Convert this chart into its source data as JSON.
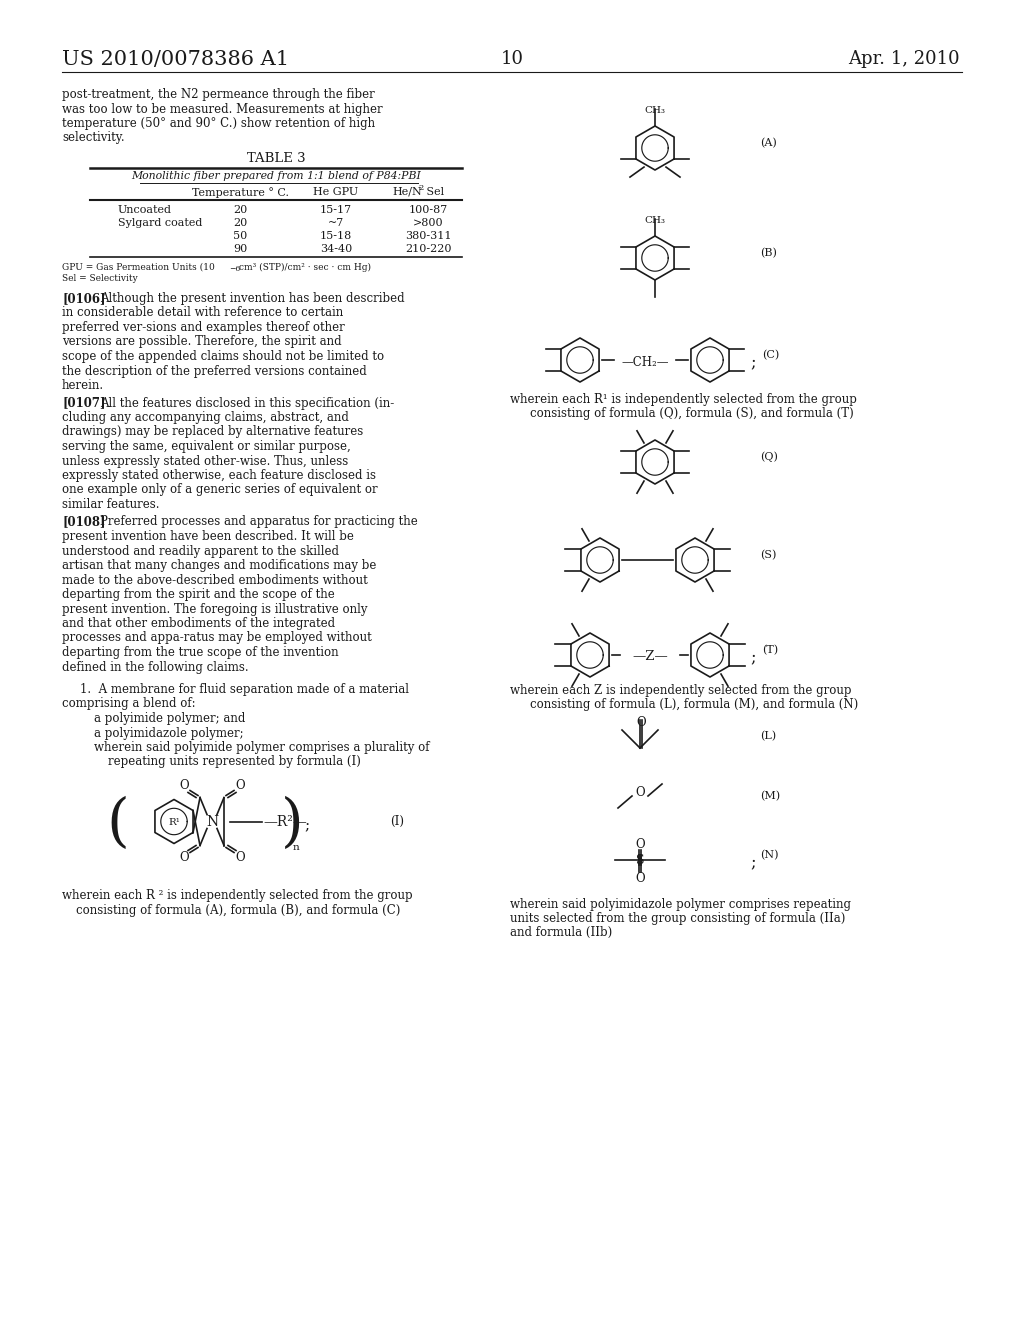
{
  "bg_color": "#ffffff",
  "text_color": "#1a1a1a",
  "header_left": "US 2010/0078386 A1",
  "header_right": "Apr. 1, 2010",
  "page_number": "10",
  "table_title": "TABLE 3",
  "table_subtitle": "Monolithic fiber prepared from 1:1 blend of P84:PBI",
  "table_rows": [
    [
      "Uncoated",
      "20",
      "15-17",
      "100-87"
    ],
    [
      "Sylgard coated",
      "20",
      "~7",
      ">800"
    ],
    [
      "",
      "50",
      "15-18",
      "380-311"
    ],
    [
      "",
      "90",
      "34-40",
      "210-220"
    ]
  ]
}
